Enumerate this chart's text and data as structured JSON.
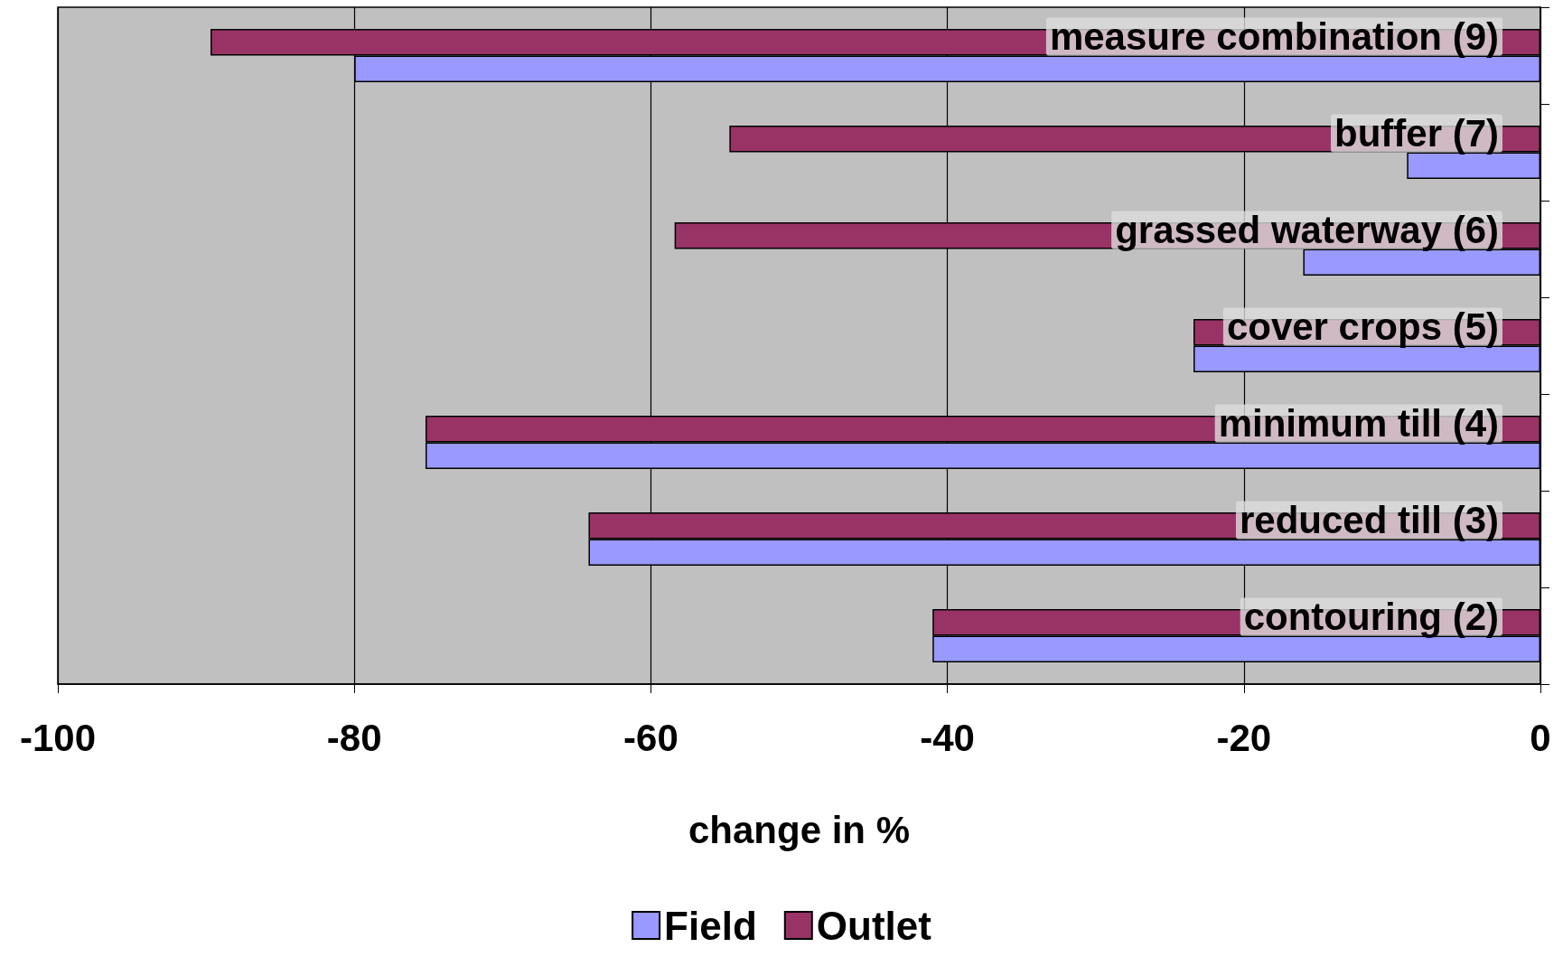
{
  "chart_data": {
    "type": "bar",
    "orientation": "horizontal",
    "xlabel": "change in %",
    "categories": [
      "measure combination (9)",
      "buffer (7)",
      "grassed waterway (6)",
      "cover crops (5)",
      "minimum till (4)",
      "reduced till (3)",
      "contouring (2)"
    ],
    "series": [
      {
        "name": "Field",
        "color": "#9999ff",
        "values": [
          -80,
          -9,
          -16,
          -23.4,
          -75.2,
          -64.2,
          -41
        ]
      },
      {
        "name": "Outlet",
        "color": "#993366",
        "values": [
          -89.7,
          -54.7,
          -58.4,
          -23.4,
          -75.2,
          -64.2,
          -41
        ]
      }
    ],
    "xlim": [
      -100,
      0
    ],
    "xticks": [
      -100,
      -80,
      -60,
      -40,
      -20,
      0
    ],
    "grid": "x",
    "legend": "bottom"
  }
}
